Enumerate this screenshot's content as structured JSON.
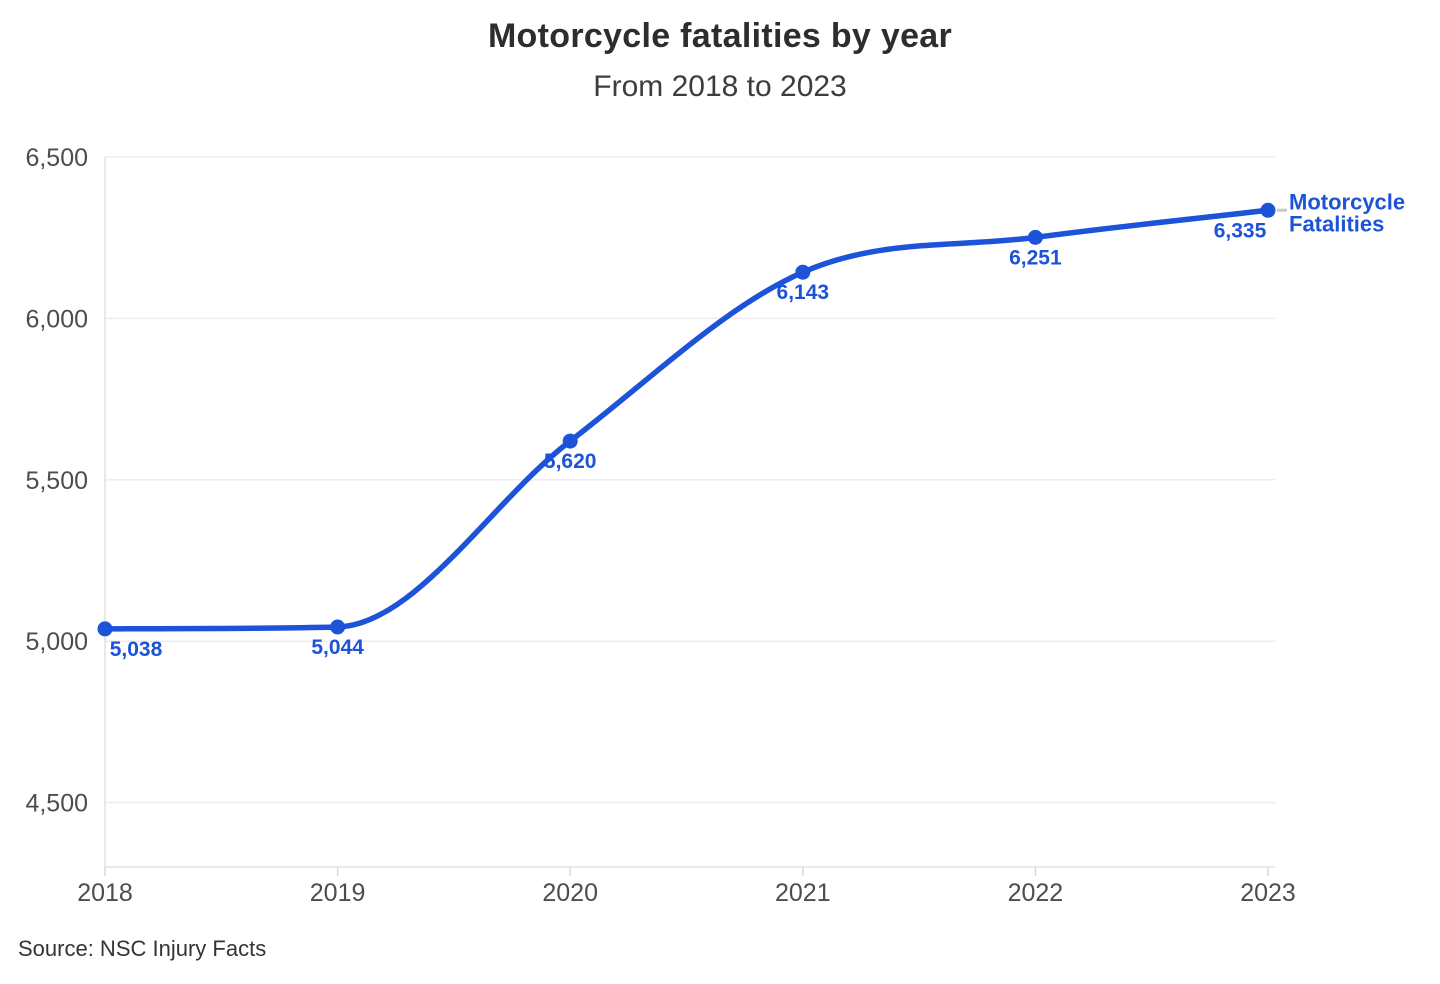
{
  "header": {
    "title": "Motorcycle fatalities by year",
    "subtitle": "From 2018 to 2023"
  },
  "footer": {
    "source": "Source: NSC Injury Facts"
  },
  "colors": {
    "line": "#1d53d8",
    "point_label": "#1d53d8",
    "legend_text": "#1d53d8",
    "axis_text": "#4d4d4d",
    "gridline": "#ededed",
    "axis_line": "#e2e2e2",
    "tick_mark": "#d8d8d8",
    "legend_connector": "#c9c9c9",
    "background": "#ffffff"
  },
  "chart_data": {
    "type": "line",
    "title": "Motorcycle fatalities by year",
    "subtitle": "From 2018 to 2023",
    "categories": [
      "2018",
      "2019",
      "2020",
      "2021",
      "2022",
      "2023"
    ],
    "series": [
      {
        "name": "Motorcycle Fatalities",
        "legend_lines": [
          "Motorcycle",
          "Fatalities"
        ],
        "values": [
          5038,
          5044,
          5620,
          6143,
          6251,
          6335
        ],
        "point_labels": [
          "5,038",
          "5,044",
          "5,620",
          "6,143",
          "6,251",
          "6,335"
        ],
        "color": "#1d53d8"
      }
    ],
    "xlabel": "",
    "ylabel": "",
    "ylim": [
      4300,
      6500
    ],
    "y_ticks": [
      {
        "value": 6500,
        "label": "6,500"
      },
      {
        "value": 6000,
        "label": "6,000"
      },
      {
        "value": 5500,
        "label": "5,500"
      },
      {
        "value": 5000,
        "label": "5,000"
      },
      {
        "value": 4500,
        "label": "4,500"
      }
    ],
    "grid": "horizontal",
    "legend_position": "end-of-line",
    "line_style": "smooth",
    "source": "Source: NSC Injury Facts"
  }
}
